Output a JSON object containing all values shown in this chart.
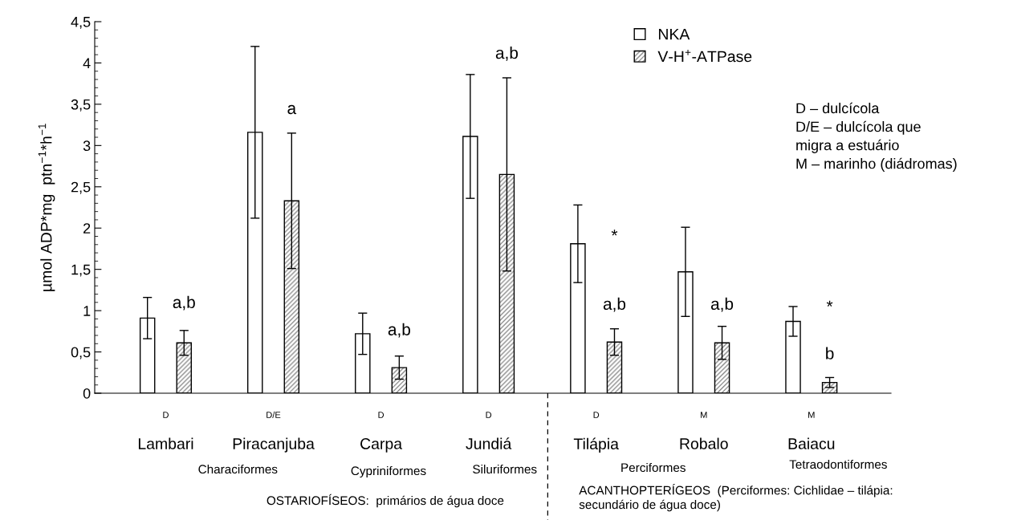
{
  "chart_data": {
    "type": "bar",
    "ylabel": "µmol ADP*mg  ptn$^{−1}$*h$^{−1}$",
    "categories": [
      "Lambari",
      "Piracanjuba",
      "Carpa",
      "Jundiá",
      "Tilápia",
      "Robalo",
      "Baiacu"
    ],
    "series": [
      {
        "name": "NKA",
        "color": "#ffffff",
        "values": [
          0.91,
          3.16,
          0.72,
          3.11,
          1.81,
          1.47,
          0.87
        ],
        "errors": [
          0.25,
          1.04,
          0.25,
          0.75,
          0.47,
          0.54,
          0.18
        ]
      },
      {
        "name": "V-H$^{+}$-ATPase",
        "color": "#000000",
        "values": [
          0.61,
          2.33,
          0.31,
          2.65,
          0.62,
          0.61,
          0.13
        ],
        "errors": [
          0.15,
          0.82,
          0.14,
          1.17,
          0.16,
          0.2,
          0.06
        ]
      }
    ],
    "ylim": [
      0,
      4.5
    ],
    "yticks": [
      0,
      {
        "value": 0.5,
        "label": "0,5"
      },
      1,
      {
        "value": 1.5,
        "label": "1,5"
      },
      2,
      {
        "value": 2.5,
        "label": "2,5"
      },
      3,
      {
        "value": 3.5,
        "label": "3,5"
      },
      4,
      {
        "value": 4.5,
        "label": "4,5"
      }
    ],
    "grid": false,
    "legend": "top",
    "annotations": [
      "a,b",
      "a",
      "a,b",
      "a,b",
      "*",
      "a,b",
      "a,b",
      "*",
      "b",
      "D",
      "D/E",
      "D",
      "D",
      "D",
      "M",
      "M",
      "Characiformes",
      "Cypriniformes",
      "Siluriformes",
      "Perciformes",
      "Tetraodontiformes",
      "OSTARIOFÍSEOS:  primários de água doce",
      "ACANTHOPTERÍGEOS  (Perciformes: Cichlidae – tilápia:\nsecundário de água doce)",
      "D – dulcícola\nD/E – dulcícola que\nmigra a estuário\nM – marinho (diádromas)"
    ]
  }
}
